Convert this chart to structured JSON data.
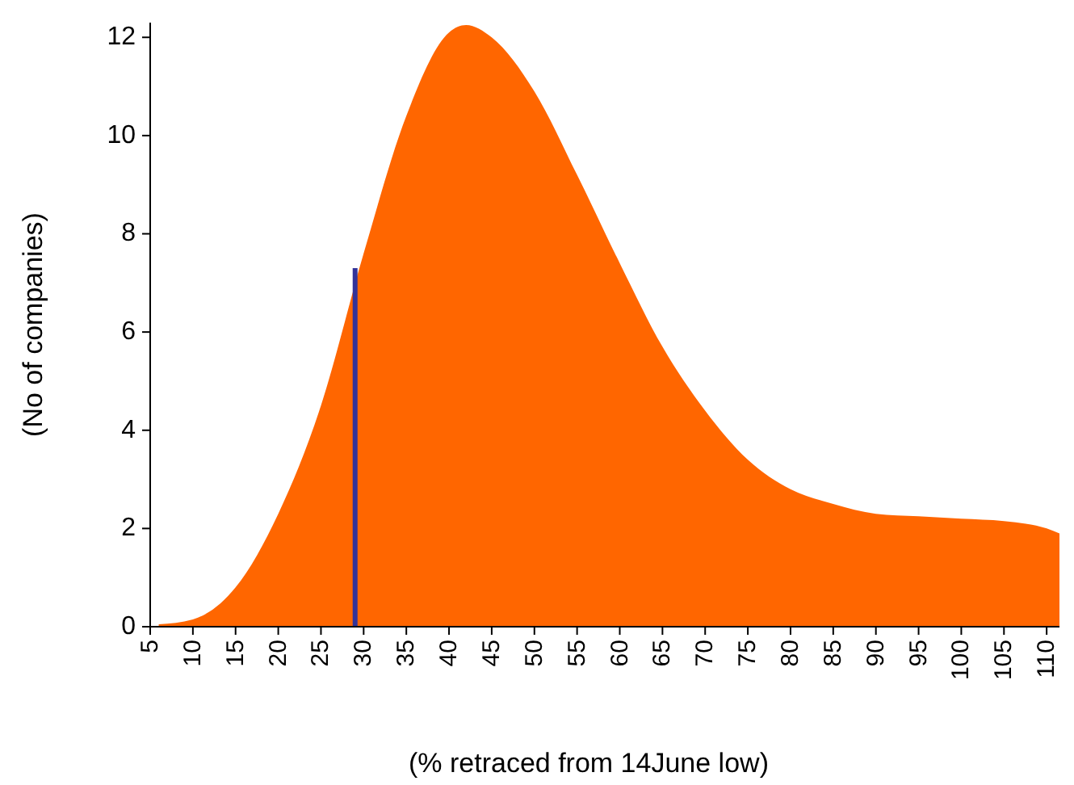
{
  "chart_data": {
    "type": "area",
    "xlabel": "(% retraced from 14June low)",
    "ylabel": "(No of companies)",
    "xlim": [
      5,
      111.5
    ],
    "ylim": [
      0,
      12.3
    ],
    "xticks": [
      5,
      10,
      15,
      20,
      25,
      30,
      35,
      40,
      45,
      50,
      55,
      60,
      65,
      70,
      75,
      80,
      85,
      90,
      95,
      100,
      105,
      110
    ],
    "yticks": [
      0,
      2,
      4,
      6,
      8,
      10,
      12
    ],
    "series": [
      {
        "color": "#ff6600",
        "x": [
          6,
          10,
          15,
          20,
          25,
          30,
          35,
          40,
          42,
          45,
          50,
          55,
          60,
          65,
          70,
          75,
          80,
          85,
          90,
          95,
          100,
          105,
          110,
          111.5
        ],
        "values": [
          0.05,
          0.15,
          0.8,
          2.3,
          4.5,
          7.6,
          10.4,
          12.1,
          12.25,
          12.0,
          10.9,
          9.2,
          7.4,
          5.7,
          4.4,
          3.4,
          2.8,
          2.5,
          2.3,
          2.25,
          2.2,
          2.15,
          2.0,
          1.9
        ]
      },
      {
        "type": "line",
        "color": "#333399",
        "x": [
          29,
          29
        ],
        "values": [
          0,
          7.3
        ]
      }
    ]
  }
}
